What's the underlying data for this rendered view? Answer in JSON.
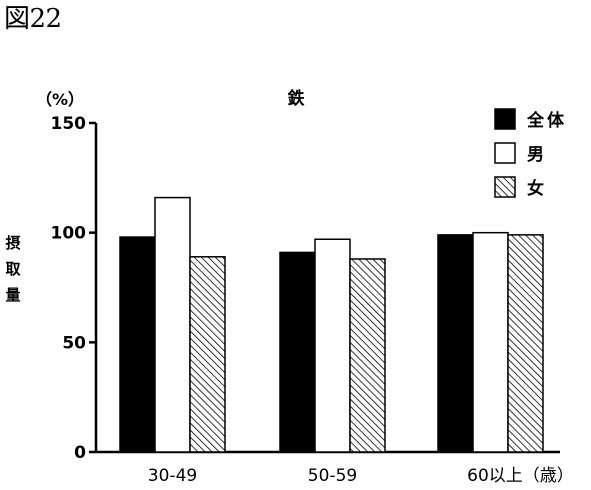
{
  "figure_label": "図22",
  "chart_data": {
    "type": "bar",
    "title": "鉄",
    "ylabel": "摂取量",
    "yunit": "（%）",
    "xlabel": "",
    "ylim": [
      0,
      150
    ],
    "yticks": [
      0,
      50,
      100,
      150
    ],
    "categories": [
      "30-49",
      "50-59",
      "60以上（歳）"
    ],
    "series": [
      {
        "name": "全体",
        "fill": "solid",
        "color": "#000000",
        "values": [
          98,
          91,
          99
        ]
      },
      {
        "name": "男",
        "fill": "white",
        "color": "#ffffff",
        "values": [
          116,
          97,
          100
        ]
      },
      {
        "name": "女",
        "fill": "hatched",
        "color": "#000000",
        "values": [
          89,
          88,
          99
        ]
      }
    ],
    "legend_position": "top-right",
    "grid": false
  }
}
